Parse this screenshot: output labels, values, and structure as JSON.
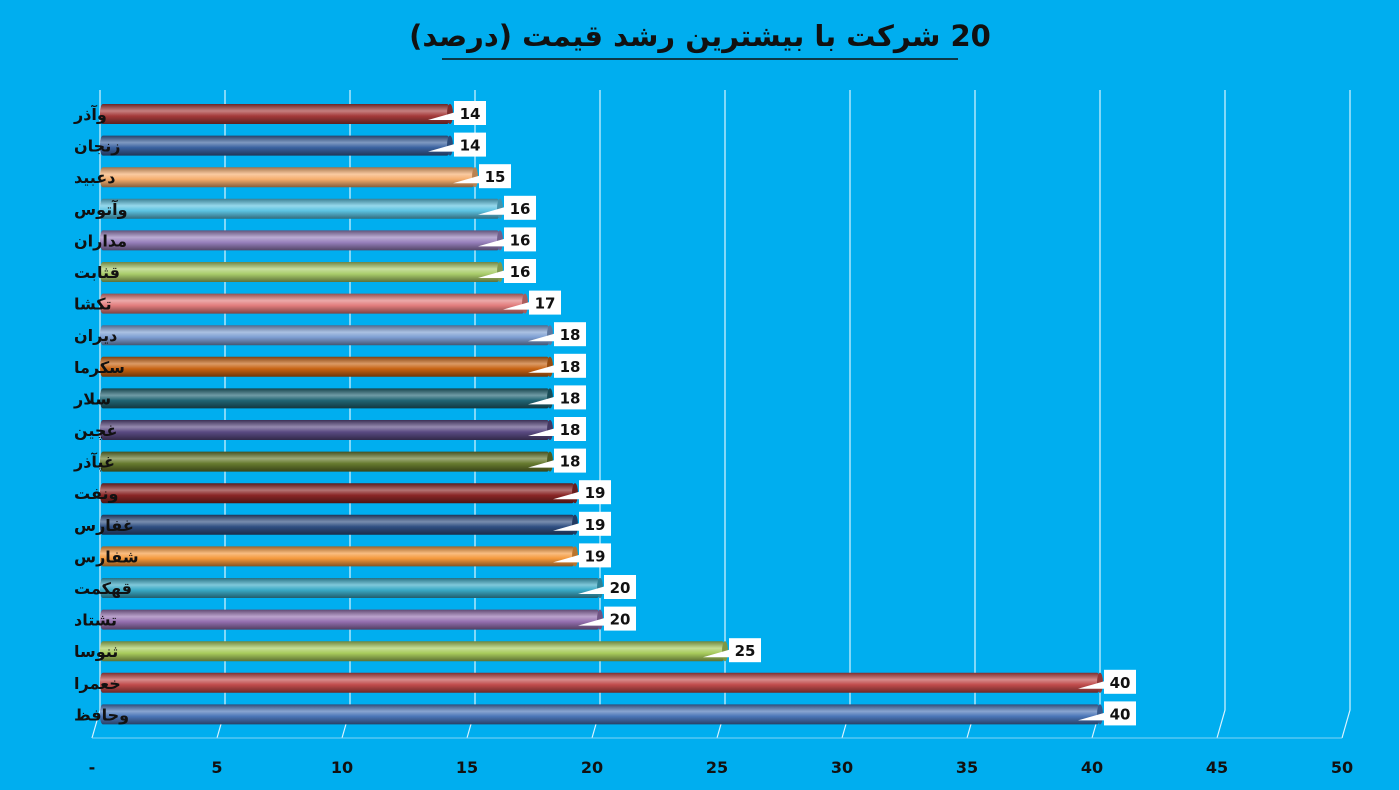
{
  "chart_data": {
    "type": "bar",
    "orientation": "horizontal",
    "title": "20 شرکت با بیشترین رشد قیمت (درصد)",
    "categories": [
      "وآذر",
      "زنجان",
      "دعبید",
      "وآتوس",
      "مداران",
      "قثابت",
      "تکشا",
      "دیران",
      "سکرما",
      "سلار",
      "غچین",
      "غپآذر",
      "ونفت",
      "غفارس",
      "شفارس",
      "قهکمت",
      "تشتاد",
      "ثنوسا",
      "خعمرا",
      "وحافظ"
    ],
    "values": [
      14,
      14,
      15,
      16,
      16,
      16,
      17,
      18,
      18,
      18,
      18,
      18,
      19,
      19,
      19,
      20,
      20,
      25,
      40,
      40
    ],
    "x_ticks": [
      "-",
      "5",
      "10",
      "15",
      "20",
      "25",
      "30",
      "35",
      "40",
      "45",
      "50"
    ],
    "xlim": [
      0,
      50
    ],
    "grid": true,
    "bar_colors": [
      "#A53A3A",
      "#3A62A0",
      "#F6AE6E",
      "#5CC3E2",
      "#9780BC",
      "#A9CC6A",
      "#E27C7C",
      "#7E9FD3",
      "#C86414",
      "#216574",
      "#5A4A82",
      "#667A2E",
      "#8A2626",
      "#2F4F82",
      "#F59A3D",
      "#3AAAC6",
      "#9570B0",
      "#A8CB5C",
      "#C04B4B",
      "#4A75B8"
    ]
  }
}
